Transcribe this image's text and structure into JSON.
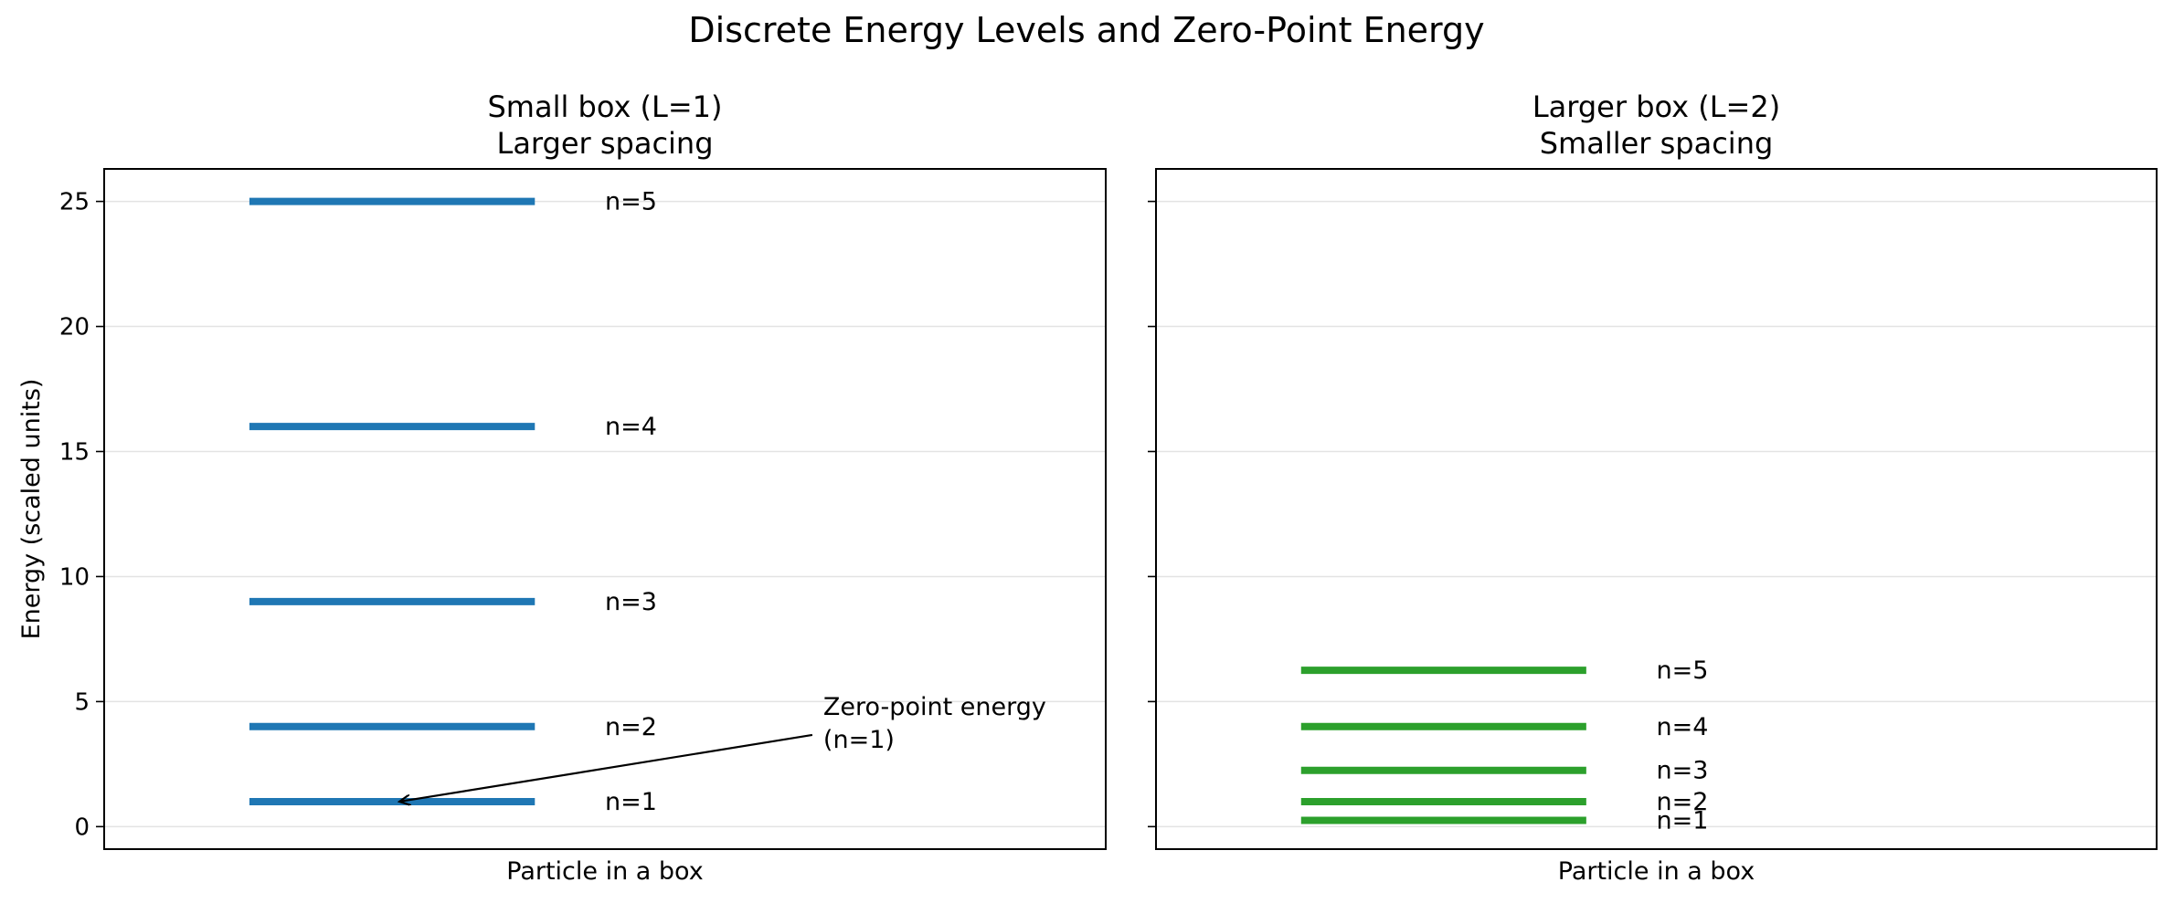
{
  "title": "Discrete Energy Levels and Zero-Point Energy",
  "chart_data": [
    {
      "type": "line",
      "title_line1": "Small box (L=1)",
      "title_line2": "Larger spacing",
      "xlabel": "Particle in a box",
      "ylabel": "Energy (scaled units)",
      "ylim": [
        -0.9,
        26.3
      ],
      "yticks": [
        0,
        5,
        10,
        15,
        20,
        25
      ],
      "grid": "horizontal",
      "color": "#1f77b4",
      "levels": [
        {
          "label": "n=1",
          "energy": 1
        },
        {
          "label": "n=2",
          "energy": 4
        },
        {
          "label": "n=3",
          "energy": 9
        },
        {
          "label": "n=4",
          "energy": 16
        },
        {
          "label": "n=5",
          "energy": 25
        }
      ],
      "annotation": {
        "line1": "Zero-point energy",
        "line2": "(n=1)",
        "points_to_energy": 1
      }
    },
    {
      "type": "line",
      "title_line1": "Larger box (L=2)",
      "title_line2": "Smaller spacing",
      "xlabel": "Particle in a box",
      "ylabel": "",
      "ylim": [
        -0.9,
        26.3
      ],
      "yticks": [
        0,
        5,
        10,
        15,
        20,
        25
      ],
      "grid": "horizontal",
      "color": "#2ca02c",
      "levels": [
        {
          "label": "n=1",
          "energy": 0.25
        },
        {
          "label": "n=2",
          "energy": 1
        },
        {
          "label": "n=3",
          "energy": 2.25
        },
        {
          "label": "n=4",
          "energy": 4
        },
        {
          "label": "n=5",
          "energy": 6.25
        }
      ]
    }
  ]
}
